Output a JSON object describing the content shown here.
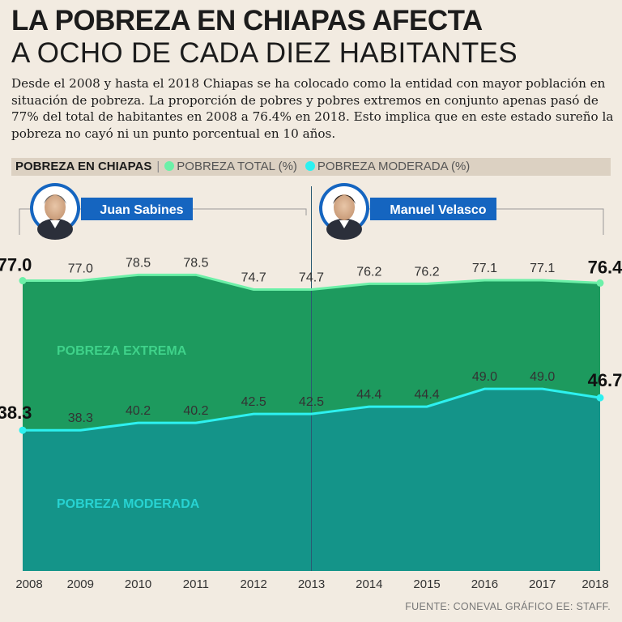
{
  "title_line1": "LA POBREZA EN CHIAPAS AFECTA",
  "title_line2": "A OCHO DE CADA DIEZ HABITANTES",
  "intro": "Desde el 2008 y hasta el 2018 Chiapas se ha colocado como la entidad con mayor población en situación de pobreza. La proporción de pobres y pobres extremos en conjunto apenas pasó de 77% del total de habitantes en 2008 a 76.4% en 2018. Esto implica que en este estado sureño la pobreza no cayó ni un punto porcentual en 10 años.",
  "legend": {
    "heading": "POBREZA EN CHIAPAS",
    "separator": "|",
    "item1": "POBREZA TOTAL (%)",
    "item2": "POBREZA MODERADA (%)"
  },
  "governors": [
    {
      "name": "Juan Sabines",
      "avatar_icon": "person-portrait-icon"
    },
    {
      "name": "Manuel Velasco",
      "avatar_icon": "person-portrait-icon"
    }
  ],
  "band_labels": {
    "upper": "POBREZA EXTREMA",
    "lower": "POBREZA MODERADA"
  },
  "source": "FUENTE: CONEVAL GRÁFICO EE: STAFF.",
  "colors": {
    "background": "#f2ebe1",
    "total_fill": "#1d9a5e",
    "total_line": "#6cf0a8",
    "moderada_fill": "#149489",
    "moderada_line": "#2df1f0",
    "extrema_label": "#3fd28a",
    "moderada_label": "#27d3d2",
    "badge": "#1565c0"
  },
  "chart_data": {
    "type": "area",
    "categories": [
      "2008",
      "2009",
      "2010",
      "2011",
      "2012",
      "2013",
      "2014",
      "2015",
      "2016",
      "2017",
      "2018"
    ],
    "series": [
      {
        "name": "POBREZA TOTAL (%)",
        "values": [
          77.0,
          77.0,
          78.5,
          78.5,
          74.7,
          74.7,
          76.2,
          76.2,
          77.1,
          77.1,
          76.4
        ],
        "labels": [
          "77.0",
          "77.0",
          "78.5",
          "78.5",
          "74.7",
          "74.7",
          "76.2",
          "76.2",
          "77.1",
          "77.1",
          "76.4"
        ]
      },
      {
        "name": "POBREZA MODERADA (%)",
        "values": [
          38.3,
          38.3,
          40.2,
          40.2,
          42.5,
          42.5,
          44.4,
          44.4,
          49.0,
          49.0,
          46.7
        ],
        "labels": [
          "38.3",
          "38.3",
          "40.2",
          "40.2",
          "42.5",
          "42.5",
          "44.4",
          "44.4",
          "49.0",
          "49.0",
          "46.7"
        ]
      }
    ],
    "highlighted_points": [
      "2008",
      "2018"
    ],
    "administration_divider": "2013",
    "xlabel": "",
    "ylabel": "",
    "grid": false,
    "legend": "top-left"
  }
}
